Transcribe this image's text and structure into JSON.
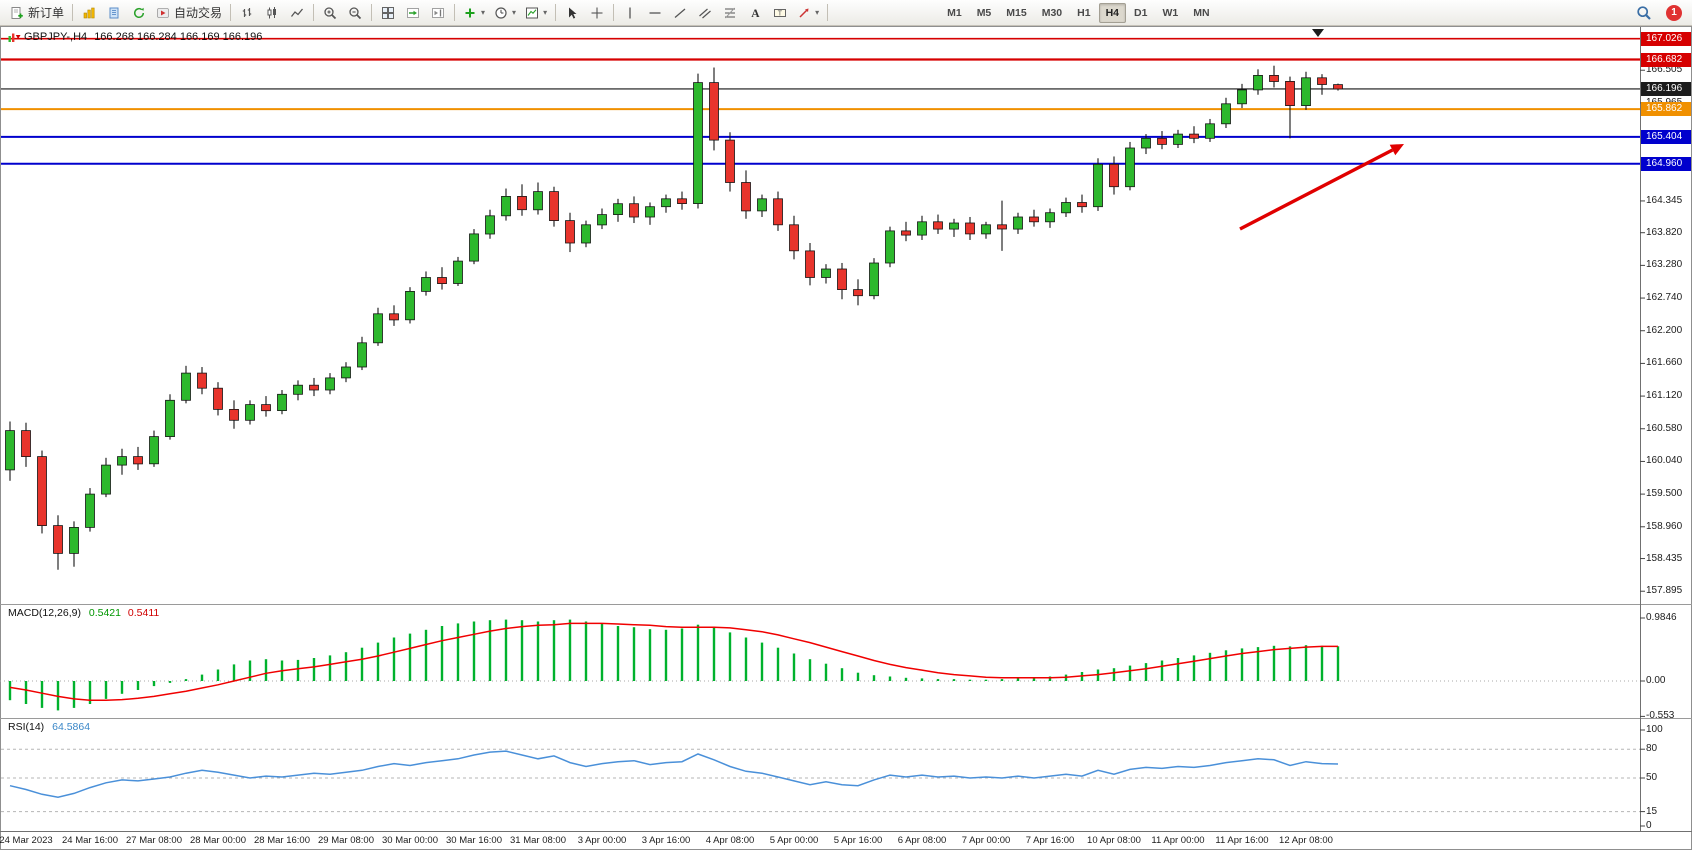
{
  "toolbar": {
    "new_order_label": "新订单",
    "auto_trading_label": "自动交易",
    "timeframes": [
      "M1",
      "M5",
      "M15",
      "M30",
      "H1",
      "H4",
      "D1",
      "W1",
      "MN"
    ],
    "active_timeframe": "H4",
    "alert_badge": "1"
  },
  "chart_header": {
    "symbol_tf": "GBPJPY-,H4",
    "ohlc": "166.268 166.284 166.169 166.196"
  },
  "indicators": {
    "macd": {
      "label": "MACD(12,26,9)",
      "value_main": "0.5421",
      "value_signal": "0.5411",
      "axis_ticks": [
        "0.9846",
        "0.00",
        "-0.553"
      ]
    },
    "rsi": {
      "label": "RSI(14)",
      "value": "64.5864",
      "axis_ticks": [
        "100",
        "80",
        "50",
        "15",
        "0"
      ],
      "levels": [
        80,
        50,
        15
      ]
    }
  },
  "price_axis": {
    "ticks": [
      "166.505",
      "165.965",
      "164.345",
      "163.820",
      "163.280",
      "162.740",
      "162.200",
      "161.660",
      "161.120",
      "160.580",
      "160.040",
      "159.500",
      "158.960",
      "158.435",
      "157.895"
    ],
    "badges": [
      {
        "value": "167.026",
        "color": "#d60000"
      },
      {
        "value": "166.682",
        "color": "#d60000"
      },
      {
        "value": "166.196",
        "color": "#1c1c1c"
      },
      {
        "value": "165.862",
        "color": "#f09000"
      },
      {
        "value": "165.404",
        "color": "#0000cd"
      },
      {
        "value": "164.960",
        "color": "#0000cd"
      }
    ]
  },
  "main_lines": [
    {
      "price": 167.026,
      "color": "#d60000",
      "width": 1.6
    },
    {
      "price": 166.682,
      "color": "#d60000",
      "width": 2.2
    },
    {
      "price": 166.196,
      "color": "#151515",
      "width": 1.1
    },
    {
      "price": 165.862,
      "color": "#f09000",
      "width": 2.0
    },
    {
      "price": 165.404,
      "color": "#0000cd",
      "width": 2.0
    },
    {
      "price": 164.96,
      "color": "#0000cd",
      "width": 2.0
    }
  ],
  "time_axis": {
    "labels": [
      "24 Mar 2023",
      "24 Mar 16:00",
      "27 Mar 08:00",
      "28 Mar 00:00",
      "28 Mar 16:00",
      "29 Mar 08:00",
      "30 Mar 00:00",
      "30 Mar 16:00",
      "31 Mar 08:00",
      "3 Apr 00:00",
      "3 Apr 16:00",
      "4 Apr 08:00",
      "5 Apr 00:00",
      "5 Apr 16:00",
      "6 Apr 08:00",
      "7 Apr 00:00",
      "7 Apr 16:00",
      "10 Apr 08:00",
      "11 Apr 00:00",
      "11 Apr 16:00",
      "12 Apr 08:00"
    ]
  },
  "colors": {
    "bull": "#2db82d",
    "bear": "#e8342c",
    "outline": "#151515",
    "macd_hist": "#00b22d",
    "macd_signal": "#f00000",
    "rsi_line": "#4a90d9",
    "arrow": "#e00000",
    "grid_dash": "#b5b5b5"
  },
  "chart_data": [
    {
      "type": "candlestick",
      "name": "GBPJPY-,H4",
      "ylim": [
        157.75,
        167.17
      ],
      "labels_every": 4,
      "first_label_bar_index": 1,
      "ohlc_current": {
        "open": 166.268,
        "high": 166.284,
        "low": 166.169,
        "close": 166.196
      },
      "candles": [
        [
          159.9,
          160.7,
          159.72,
          160.55
        ],
        [
          160.55,
          160.68,
          159.95,
          160.12
        ],
        [
          160.12,
          160.22,
          158.85,
          158.98
        ],
        [
          158.98,
          159.15,
          158.25,
          158.52
        ],
        [
          158.52,
          159.05,
          158.3,
          158.95
        ],
        [
          158.95,
          159.6,
          158.88,
          159.5
        ],
        [
          159.5,
          160.1,
          159.45,
          159.98
        ],
        [
          159.98,
          160.25,
          159.82,
          160.12
        ],
        [
          160.12,
          160.28,
          159.9,
          160.0
        ],
        [
          160.0,
          160.55,
          159.95,
          160.45
        ],
        [
          160.45,
          161.15,
          160.4,
          161.05
        ],
        [
          161.05,
          161.62,
          161.0,
          161.5
        ],
        [
          161.5,
          161.6,
          161.15,
          161.25
        ],
        [
          161.25,
          161.35,
          160.8,
          160.9
        ],
        [
          160.9,
          161.05,
          160.58,
          160.72
        ],
        [
          160.72,
          161.05,
          160.65,
          160.98
        ],
        [
          160.98,
          161.12,
          160.78,
          160.88
        ],
        [
          160.88,
          161.22,
          160.82,
          161.15
        ],
        [
          161.15,
          161.38,
          161.05,
          161.3
        ],
        [
          161.3,
          161.42,
          161.12,
          161.22
        ],
        [
          161.22,
          161.5,
          161.15,
          161.42
        ],
        [
          161.42,
          161.68,
          161.35,
          161.6
        ],
        [
          161.6,
          162.1,
          161.55,
          162.0
        ],
        [
          162.0,
          162.58,
          161.95,
          162.48
        ],
        [
          162.48,
          162.62,
          162.28,
          162.38
        ],
        [
          162.38,
          162.92,
          162.32,
          162.85
        ],
        [
          162.85,
          163.18,
          162.78,
          163.08
        ],
        [
          163.08,
          163.25,
          162.88,
          162.98
        ],
        [
          162.98,
          163.42,
          162.94,
          163.35
        ],
        [
          163.35,
          163.88,
          163.3,
          163.8
        ],
        [
          163.8,
          164.2,
          163.72,
          164.1
        ],
        [
          164.1,
          164.55,
          164.02,
          164.42
        ],
        [
          164.42,
          164.62,
          164.1,
          164.2
        ],
        [
          164.2,
          164.65,
          164.12,
          164.5
        ],
        [
          164.5,
          164.58,
          163.92,
          164.02
        ],
        [
          164.02,
          164.15,
          163.5,
          163.65
        ],
        [
          163.65,
          164.02,
          163.58,
          163.95
        ],
        [
          163.95,
          164.22,
          163.88,
          164.12
        ],
        [
          164.12,
          164.38,
          164.0,
          164.3
        ],
        [
          164.3,
          164.42,
          163.98,
          164.08
        ],
        [
          164.08,
          164.32,
          163.95,
          164.25
        ],
        [
          164.25,
          164.45,
          164.15,
          164.38
        ],
        [
          164.38,
          164.5,
          164.2,
          164.3
        ],
        [
          164.3,
          166.45,
          164.22,
          166.3
        ],
        [
          166.3,
          166.55,
          165.18,
          165.35
        ],
        [
          165.35,
          165.48,
          164.5,
          164.65
        ],
        [
          164.65,
          164.85,
          164.05,
          164.18
        ],
        [
          164.18,
          164.45,
          164.08,
          164.38
        ],
        [
          164.38,
          164.5,
          163.85,
          163.95
        ],
        [
          163.95,
          164.1,
          163.38,
          163.52
        ],
        [
          163.52,
          163.65,
          162.95,
          163.08
        ],
        [
          163.08,
          163.3,
          162.98,
          163.22
        ],
        [
          163.22,
          163.32,
          162.72,
          162.88
        ],
        [
          162.88,
          163.05,
          162.62,
          162.78
        ],
        [
          162.78,
          163.4,
          162.72,
          163.32
        ],
        [
          163.32,
          163.92,
          163.25,
          163.85
        ],
        [
          163.85,
          164.0,
          163.68,
          163.78
        ],
        [
          163.78,
          164.1,
          163.7,
          164.0
        ],
        [
          164.0,
          164.12,
          163.8,
          163.88
        ],
        [
          163.88,
          164.05,
          163.75,
          163.98
        ],
        [
          163.98,
          164.08,
          163.7,
          163.8
        ],
        [
          163.8,
          164.0,
          163.72,
          163.95
        ],
        [
          163.95,
          164.35,
          163.52,
          163.88
        ],
        [
          163.88,
          164.15,
          163.8,
          164.08
        ],
        [
          164.08,
          164.2,
          163.92,
          164.0
        ],
        [
          164.0,
          164.22,
          163.9,
          164.15
        ],
        [
          164.15,
          164.4,
          164.08,
          164.32
        ],
        [
          164.32,
          164.45,
          164.15,
          164.25
        ],
        [
          164.25,
          165.05,
          164.18,
          164.95
        ],
        [
          164.95,
          165.08,
          164.45,
          164.58
        ],
        [
          164.58,
          165.32,
          164.52,
          165.22
        ],
        [
          165.22,
          165.45,
          165.12,
          165.38
        ],
        [
          165.38,
          165.5,
          165.2,
          165.28
        ],
        [
          165.28,
          165.52,
          165.22,
          165.45
        ],
        [
          165.45,
          165.58,
          165.3,
          165.38
        ],
        [
          165.38,
          165.7,
          165.32,
          165.62
        ],
        [
          165.62,
          166.05,
          165.55,
          165.95
        ],
        [
          165.95,
          166.28,
          165.88,
          166.18
        ],
        [
          166.18,
          166.52,
          166.1,
          166.42
        ],
        [
          166.42,
          166.58,
          166.22,
          166.32
        ],
        [
          166.32,
          166.4,
          165.38,
          165.92
        ],
        [
          165.92,
          166.48,
          165.85,
          166.38
        ],
        [
          166.38,
          166.44,
          166.1,
          166.27
        ],
        [
          166.268,
          166.284,
          166.169,
          166.196
        ]
      ]
    },
    {
      "type": "bar",
      "name": "MACD histogram",
      "ylim": [
        -0.553,
        0.9846
      ],
      "values": [
        -0.3,
        -0.36,
        -0.42,
        -0.46,
        -0.42,
        -0.36,
        -0.28,
        -0.2,
        -0.14,
        -0.08,
        -0.03,
        0.03,
        0.1,
        0.18,
        0.26,
        0.32,
        0.34,
        0.32,
        0.33,
        0.36,
        0.4,
        0.45,
        0.52,
        0.6,
        0.68,
        0.74,
        0.8,
        0.86,
        0.9,
        0.93,
        0.95,
        0.96,
        0.95,
        0.93,
        0.95,
        0.96,
        0.93,
        0.89,
        0.86,
        0.84,
        0.81,
        0.8,
        0.82,
        0.88,
        0.84,
        0.76,
        0.68,
        0.6,
        0.52,
        0.43,
        0.34,
        0.27,
        0.2,
        0.13,
        0.09,
        0.07,
        0.05,
        0.04,
        0.03,
        0.03,
        0.02,
        0.02,
        0.03,
        0.04,
        0.05,
        0.07,
        0.1,
        0.14,
        0.18,
        0.2,
        0.24,
        0.28,
        0.32,
        0.36,
        0.4,
        0.44,
        0.48,
        0.51,
        0.53,
        0.55,
        0.54,
        0.56,
        0.55,
        0.5421
      ]
    },
    {
      "type": "line",
      "name": "MACD signal",
      "values": [
        -0.1,
        -0.14,
        -0.19,
        -0.24,
        -0.28,
        -0.3,
        -0.3,
        -0.29,
        -0.27,
        -0.24,
        -0.2,
        -0.16,
        -0.11,
        -0.06,
        0.0,
        0.06,
        0.12,
        0.16,
        0.19,
        0.22,
        0.26,
        0.3,
        0.34,
        0.39,
        0.45,
        0.51,
        0.57,
        0.63,
        0.68,
        0.73,
        0.78,
        0.82,
        0.85,
        0.87,
        0.88,
        0.9,
        0.9,
        0.9,
        0.89,
        0.88,
        0.87,
        0.85,
        0.84,
        0.84,
        0.84,
        0.83,
        0.8,
        0.77,
        0.72,
        0.66,
        0.6,
        0.53,
        0.46,
        0.39,
        0.32,
        0.26,
        0.21,
        0.17,
        0.13,
        0.1,
        0.08,
        0.06,
        0.05,
        0.05,
        0.05,
        0.05,
        0.06,
        0.08,
        0.1,
        0.13,
        0.16,
        0.19,
        0.23,
        0.27,
        0.31,
        0.35,
        0.39,
        0.43,
        0.46,
        0.49,
        0.51,
        0.53,
        0.54,
        0.5411
      ]
    },
    {
      "type": "line",
      "name": "RSI",
      "ylim": [
        0,
        100
      ],
      "values": [
        42,
        38,
        33,
        30,
        34,
        40,
        45,
        48,
        47,
        49,
        51,
        55,
        58,
        56,
        53,
        50,
        52,
        51,
        53,
        55,
        54,
        56,
        58,
        62,
        65,
        63,
        66,
        68,
        70,
        74,
        77,
        78,
        74,
        70,
        73,
        66,
        62,
        65,
        67,
        68,
        64,
        66,
        67,
        75,
        69,
        62,
        57,
        55,
        51,
        47,
        43,
        46,
        43,
        42,
        48,
        53,
        51,
        53,
        51,
        52,
        50,
        51,
        50,
        52,
        50,
        52,
        54,
        52,
        58,
        54,
        59,
        61,
        60,
        62,
        61,
        63,
        66,
        68,
        70,
        69,
        63,
        67,
        65,
        64.5864
      ]
    }
  ]
}
